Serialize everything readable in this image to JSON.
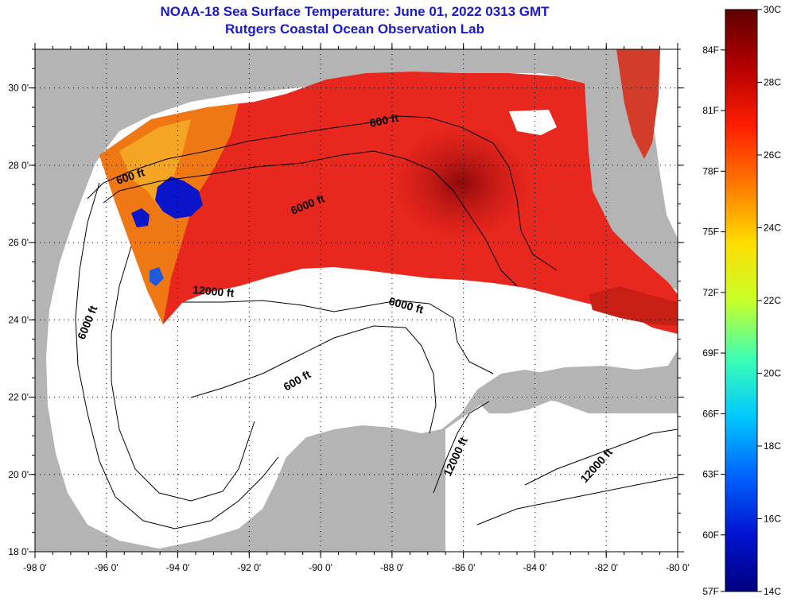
{
  "header": {
    "title": "NOAA-18 Sea Surface Temperature:  June 01, 2022 0313 GMT",
    "subtitle": "Rutgers Coastal Ocean Observation Lab"
  },
  "map": {
    "lon_range": [
      -98,
      -80
    ],
    "lat_range": [
      18,
      31
    ],
    "x_tick_labels": [
      "-98 0'",
      "-96 0'",
      "-94 0'",
      "-92 0'",
      "-90 0'",
      "-88 0'",
      "-86 0'",
      "-84 0'",
      "-82 0'",
      "-80 0'"
    ],
    "y_tick_labels": [
      "18 0'",
      "20 0'",
      "22 0'",
      "24 0'",
      "26 0'",
      "28 0'",
      "30 0'"
    ],
    "grid": "dotted",
    "colors": {
      "land": "#b4b4b4",
      "cloud_mask": "#ffffff",
      "sst_warm": "#e8281e",
      "sst_hot": "#b41414",
      "sst_mid": "#f07814",
      "sst_cool": "#0a14c8"
    }
  },
  "isobaths": [
    {
      "label": "600 ft"
    },
    {
      "label": "600 ft"
    },
    {
      "label": "600 ft"
    },
    {
      "label": "6000 ft"
    },
    {
      "label": "6000 ft"
    },
    {
      "label": "6000 ft"
    },
    {
      "label": "12000 ft"
    },
    {
      "label": "12000 ft"
    },
    {
      "label": "12000 ft"
    }
  ],
  "colorbar": {
    "celsius_labels": [
      "30C",
      "28C",
      "26C",
      "24C",
      "22C",
      "20C",
      "18C",
      "16C",
      "14C"
    ],
    "fahrenheit_labels": [
      "84F",
      "81F",
      "78F",
      "75F",
      "72F",
      "69F",
      "66F",
      "63F",
      "60F",
      "57F"
    ],
    "stops": [
      "#600000",
      "#b40000",
      "#ff1e00",
      "#ff7800",
      "#ffdc00",
      "#c8ff28",
      "#3cffb4",
      "#00c8ff",
      "#0064ff",
      "#0014d2",
      "#000080"
    ]
  }
}
